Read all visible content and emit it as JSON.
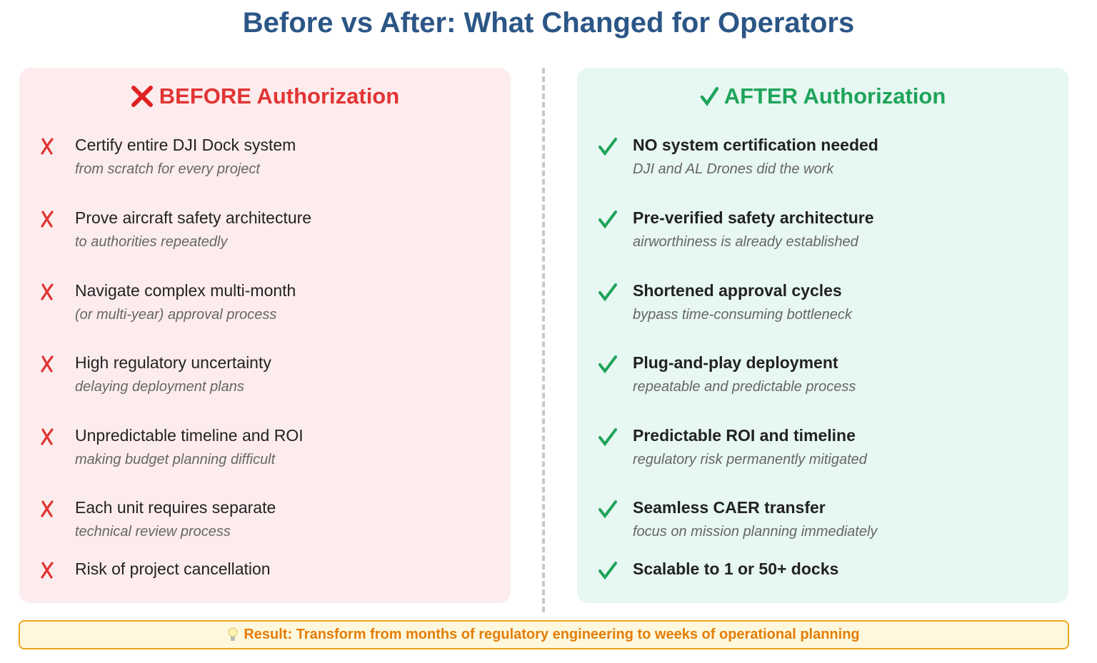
{
  "title": "Before vs After: What Changed for Operators",
  "before": {
    "heading": "BEFORE Authorization",
    "items": [
      {
        "main": "Certify entire DJI Dock system",
        "sub": "from scratch for every project"
      },
      {
        "main": "Prove aircraft safety architecture",
        "sub": "to authorities repeatedly"
      },
      {
        "main": "Navigate complex multi-month",
        "sub": "(or multi-year) approval process"
      },
      {
        "main": "High regulatory uncertainty",
        "sub": "delaying deployment plans"
      },
      {
        "main": "Unpredictable timeline and ROI",
        "sub": "making budget planning difficult"
      },
      {
        "main": "Each unit requires separate",
        "sub": "technical review process"
      },
      {
        "main": "Risk of project cancellation"
      }
    ]
  },
  "after": {
    "heading": "AFTER Authorization",
    "items": [
      {
        "main": "NO system certification needed",
        "sub": "DJI and AL Drones did the work"
      },
      {
        "main": "Pre-verified safety architecture",
        "sub": "airworthiness is already established"
      },
      {
        "main": "Shortened approval cycles",
        "sub": "bypass time-consuming bottleneck"
      },
      {
        "main": "Plug-and-play deployment",
        "sub": "repeatable and predictable process"
      },
      {
        "main": "Predictable ROI and timeline",
        "sub": "regulatory risk permanently mitigated"
      },
      {
        "main": "Seamless CAER transfer",
        "sub": "focus on mission planning immediately"
      },
      {
        "main": "Scalable to 1 or 50+ docks"
      }
    ]
  },
  "result": "Result: Transform from months of regulatory engineering to weeks of operational planning"
}
